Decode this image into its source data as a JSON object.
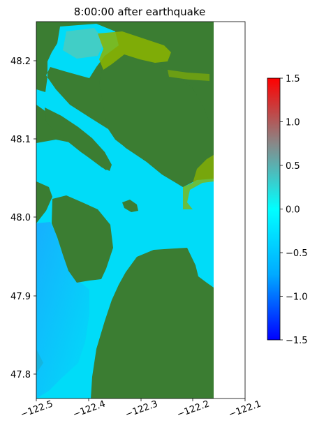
{
  "chart_data": {
    "type": "heatmap",
    "title": "8:00:00 after earthquake",
    "xlim": [
      -122.5,
      -122.1
    ],
    "ylim": [
      47.77,
      48.25
    ],
    "xticks": [
      -122.5,
      -122.4,
      -122.3,
      -122.2,
      -122.1
    ],
    "xtick_labels": [
      "−122.5",
      "−122.4",
      "−122.3",
      "−122.2",
      "−122.1"
    ],
    "yticks": [
      47.8,
      47.9,
      48.0,
      48.1,
      48.2
    ],
    "ytick_labels": [
      "47.8",
      "47.9",
      "48.0",
      "48.1",
      "48.2"
    ],
    "data_extent_x": [
      -122.5,
      -122.16
    ],
    "colorbar": {
      "range": [
        -1.5,
        1.5
      ],
      "ticks": [
        -1.5,
        -1.0,
        -0.5,
        0.0,
        0.5,
        1.0,
        1.5
      ],
      "tick_labels": [
        "−1.5",
        "−1.0",
        "−0.5",
        "0.0",
        "0.5",
        "1.0",
        "1.5"
      ],
      "colors": [
        "#0000ff",
        "#00aaff",
        "#00ffff",
        "#888888",
        "#ff0000"
      ]
    },
    "colors": {
      "land": "#3b7d32",
      "water": "#00dcf8",
      "water_deep": "#1aa8ff",
      "shore": "#8cb400"
    }
  }
}
